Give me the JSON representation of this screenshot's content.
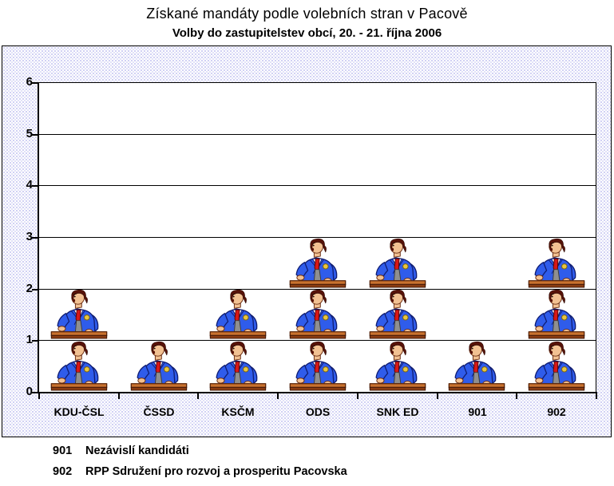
{
  "page": {
    "title": "Získané mandáty podle volebních stran v Pacově",
    "subtitle": "Volby do zastupitelstev obcí, 20. - 21. října 2006"
  },
  "footnotes": [
    {
      "code": "901",
      "text": "Nezávislí kandidáti"
    },
    {
      "code": "902",
      "text": "RPP Sdružení pro rozvoj a prosperitu Pacovska"
    }
  ],
  "chart_data": {
    "type": "bar",
    "subtype": "pictogram",
    "unit_icon": "businessman-at-desk",
    "title": "Získané mandáty podle volebních stran v Pacově",
    "subtitle": "Volby do zastupitelstev obcí, 20. - 21. října 2006",
    "categories": [
      "KDU-ČSL",
      "ČSSD",
      "KSČM",
      "ODS",
      "SNK ED",
      "901",
      "902"
    ],
    "values": [
      2,
      1,
      2,
      3,
      3,
      1,
      3
    ],
    "xlabel": "",
    "ylabel": "",
    "ylim": [
      0,
      6
    ],
    "yticks": [
      0,
      1,
      2,
      3,
      4,
      5,
      6
    ],
    "grid": true,
    "legend": false,
    "colors": {
      "plot_bg": "#ffffff",
      "outer_bg_dot": "#b2b2ec",
      "grid": "#000000",
      "suit": "#2f5ceb",
      "suit_outline": "#101d72",
      "tie": "#d61717",
      "shirt": "#ffffff",
      "skin": "#f2c192",
      "hair": "#581309",
      "badge": "#e9c63f",
      "desk": "#c9722e",
      "desk_shadow": "#8a3c12",
      "object": "#8f8f8f"
    }
  }
}
